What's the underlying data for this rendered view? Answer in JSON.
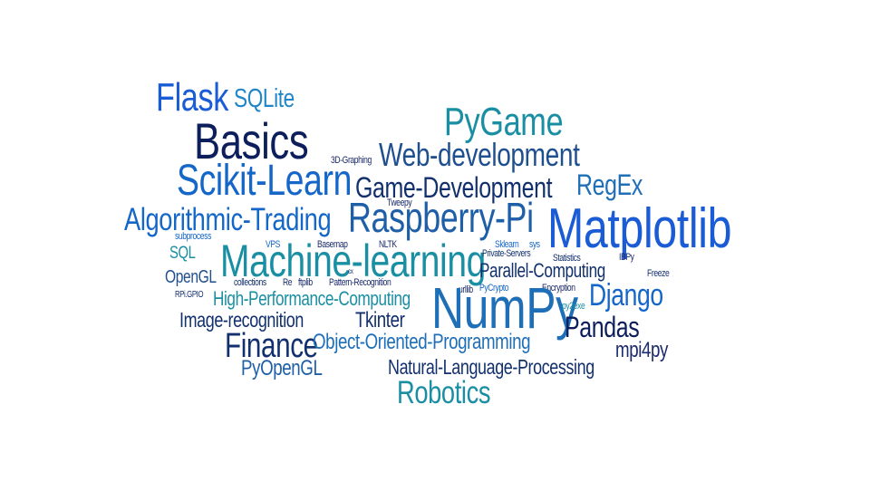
{
  "colors": {
    "navy": "#1b2a6b",
    "darkblue": "#0d1e5c",
    "blue": "#1466c8",
    "brightblue": "#1a5bd6",
    "teal": "#1a8fa3",
    "mid": "#1e5fa8",
    "deep": "#12306e"
  },
  "words": {
    "flask": "Flask",
    "sqlite": "SQLite",
    "basics": "Basics",
    "pygame": "PyGame",
    "graphing3d": "3D-Graphing",
    "webdev": "Web-development",
    "scikit": "Scikit-Learn",
    "gamedev": "Game-Development",
    "regex": "RegEx",
    "tweepy": "Tweepy",
    "algotrading": "Algorithmic-Trading",
    "raspberry": "Raspberry-Pi",
    "matplotlib": "Matplotlib",
    "subprocess": "subprocess",
    "vps": "VPS",
    "basemap": "Basemap",
    "nltk": "NLTK",
    "sklearn": "Sklearn",
    "sys": "sys",
    "sql": "SQL",
    "ml": "Machine-learning",
    "privateservers": "Private-Servers",
    "statistics": "Statistics",
    "ibpy": "IBPy",
    "cx": "cx",
    "parallel": "Parallel-Computing",
    "freeze": "Freeze",
    "opengl": "OpenGL",
    "collections": "collections",
    "re": "Re",
    "ftplib": "ftplib",
    "pattern": "Pattern-Recognition",
    "urllib": "urllib",
    "pycrypto": "PyCrypto",
    "encryption": "Encryption",
    "django": "Django",
    "rpigpio": "RPi.GPIO",
    "hpc": "High-Performance-Computing",
    "numpy": "NumPy",
    "py2exe": "py2exe",
    "imagerec": "Image-recognition",
    "tkinter": "Tkinter",
    "pandas": "Pandas",
    "finance": "Finance",
    "oop": "Object-Oriented-Programming",
    "mpi4py": "mpi4py",
    "pyopengl": "PyOpenGL",
    "nlp": "Natural-Language-Processing",
    "robotics": "Robotics"
  }
}
